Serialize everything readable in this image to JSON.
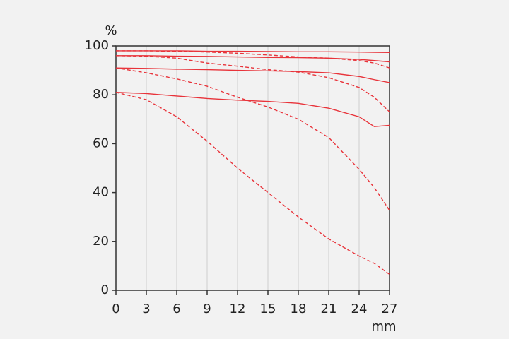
{
  "chart_data": {
    "type": "line",
    "y_label": "%",
    "x_label": "mm",
    "x": [
      0,
      3,
      6,
      9,
      12,
      15,
      18,
      21,
      24,
      25.5,
      27
    ],
    "xlim": [
      0,
      27
    ],
    "xticks": [
      0,
      3,
      6,
      9,
      12,
      15,
      18,
      21,
      24,
      27
    ],
    "ylim": [
      0,
      100
    ],
    "yticks": [
      0,
      20,
      40,
      60,
      80,
      100
    ],
    "grid": "x",
    "series": [
      {
        "color": "#e8333a",
        "dashed": false,
        "values": [
          98,
          98,
          98,
          97.8,
          97.8,
          97.7,
          97.6,
          97.6,
          97.5,
          97.4,
          97.3
        ]
      },
      {
        "color": "#e8333a",
        "dashed": true,
        "values": [
          98,
          98,
          97.8,
          97.5,
          97,
          96.3,
          95.5,
          95,
          94,
          93,
          91
        ]
      },
      {
        "color": "#e8333a",
        "dashed": false,
        "values": [
          96,
          96,
          95.8,
          95.7,
          95.5,
          95.3,
          95.2,
          95,
          94.5,
          94,
          93.5
        ]
      },
      {
        "color": "#e8333a",
        "dashed": true,
        "values": [
          96,
          95.8,
          95,
          93,
          91.7,
          90.3,
          89.3,
          87,
          83,
          79,
          73
        ]
      },
      {
        "color": "#e8333a",
        "dashed": false,
        "values": [
          91,
          90.8,
          90.5,
          90.3,
          90,
          89.8,
          89.5,
          89,
          87.5,
          86.2,
          85
        ]
      },
      {
        "color": "#e8333a",
        "dashed": true,
        "values": [
          91,
          89,
          86.5,
          83.5,
          79,
          75,
          70,
          62.5,
          49.5,
          42,
          32.7
        ]
      },
      {
        "color": "#e8333a",
        "dashed": false,
        "values": [
          81,
          80.5,
          79.5,
          78.5,
          77.8,
          77.3,
          76.5,
          74.5,
          71,
          67,
          67.5
        ]
      },
      {
        "color": "#e8333a",
        "dashed": true,
        "values": [
          81,
          78,
          71,
          61,
          50,
          40,
          30,
          21,
          14,
          11,
          6.5
        ]
      }
    ]
  }
}
